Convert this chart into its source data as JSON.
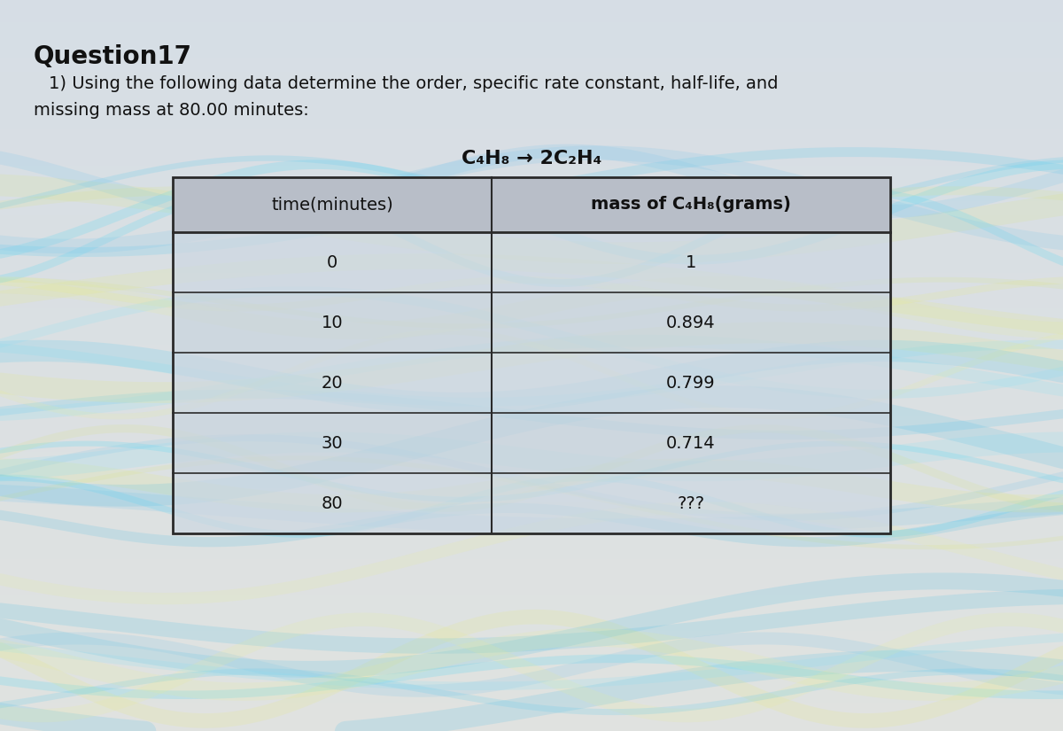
{
  "title": "Question17",
  "subtitle_line1": "1) Using the following data determine the order, specific rate constant, half-life, and",
  "subtitle_line2": "missing mass at 80.00 minutes:",
  "reaction": "C₄H₈ → 2C₂H₄",
  "col1_header": "time(minutes)",
  "col2_header": "mass of C₄H₈(grams)",
  "times": [
    "0",
    "10",
    "20",
    "30",
    "80"
  ],
  "masses": [
    "1",
    "0.894",
    "0.799",
    "0.714",
    "???"
  ],
  "bg_top_color": "#d8e4ec",
  "bg_bottom_color": "#c0d0dc",
  "table_header_bg": "#b8bec8",
  "table_row_bg_alpha": 0.55,
  "table_border_color": "#2a2a2a",
  "title_fontsize": 20,
  "subtitle_fontsize": 14,
  "reaction_fontsize": 16,
  "table_fontsize": 14,
  "title_color": "#111111",
  "text_color": "#111111"
}
